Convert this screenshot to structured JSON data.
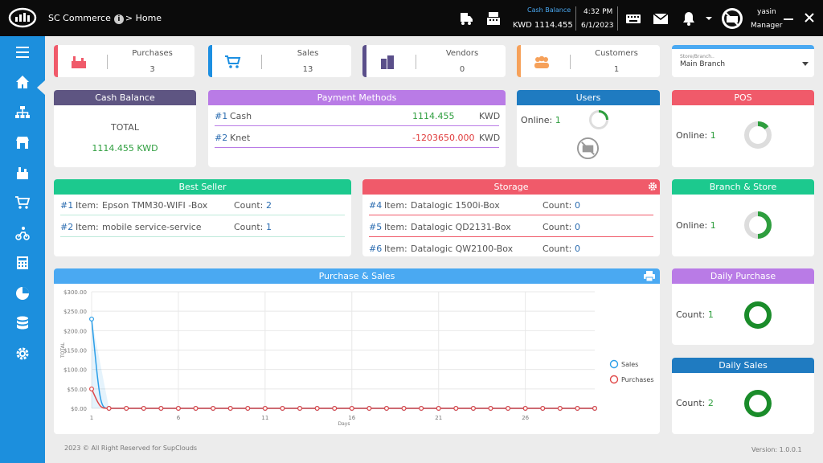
{
  "topbar": {
    "app_title": "SC Commerce",
    "info_label": "i",
    "breadcrumb": "> Home",
    "cash_balance_label": "Cash Balance",
    "cash_balance_value": "KWD  1114.455",
    "time": "4:32 PM",
    "date": "6/1/2023",
    "user_name": "yasin",
    "user_role": "Manager",
    "icons": [
      "truck-icon",
      "cash-register-icon",
      "keyboard-icon",
      "mail-icon",
      "bell-icon",
      "chevron-down-icon",
      "avatar-icon",
      "minimize-icon",
      "close-icon"
    ]
  },
  "sidebar": {
    "items": [
      "menu-icon",
      "home-icon",
      "org-chart-icon",
      "store-icon",
      "purchases-icon",
      "cart-icon",
      "delivery-icon",
      "calculator-icon",
      "pie-chart-icon",
      "database-icon",
      "gear-icon"
    ],
    "active": "home-icon"
  },
  "stats": [
    {
      "label": "Purchases",
      "value": "3",
      "color": "#f05a6a",
      "icon": "factory-icon"
    },
    {
      "label": "Sales",
      "value": "13",
      "color": "#1d8fe1",
      "icon": "cart-icon"
    },
    {
      "label": "Vendors",
      "value": "0",
      "color": "#5a4f8a",
      "icon": "buildings-icon"
    },
    {
      "label": "Customers",
      "value": "1",
      "color": "#f6a15a",
      "icon": "people-icon"
    }
  ],
  "branch_select": {
    "label": "Store/Branch..",
    "value": "Main Branch"
  },
  "cash_balance": {
    "title": "Cash Balance",
    "total_label": "TOTAL",
    "total_value": "1114.455 KWD",
    "color": "#5e5582"
  },
  "payment_methods": {
    "title": "Payment Methods",
    "color": "#b97be6",
    "rows": [
      {
        "idx": "#1",
        "name": "Cash",
        "amount": "1114.455",
        "currency": "KWD",
        "amount_color": "green"
      },
      {
        "idx": "#2",
        "name": "Knet",
        "amount": "-1203650.000",
        "currency": "KWD",
        "amount_color": "red"
      }
    ]
  },
  "users": {
    "title": "Users",
    "online_label": "Online:",
    "online_value": "1",
    "color": "#1f7bc1"
  },
  "pos": {
    "title": "POS",
    "online_label": "Online:",
    "online_value": "1",
    "color": "#f05a6a"
  },
  "best_seller": {
    "title": "Best Seller",
    "color": "#1cc98e",
    "rows": [
      {
        "idx": "#1",
        "item_label": "Item:",
        "item": "Epson TMM30-WIFI -Box",
        "count_label": "Count:",
        "count": "2"
      },
      {
        "idx": "#2",
        "item_label": "Item:",
        "item": "mobile service-service",
        "count_label": "Count:",
        "count": "1"
      }
    ]
  },
  "storage": {
    "title": "Storage",
    "color": "#f05a6a",
    "rows": [
      {
        "idx": "#4",
        "item_label": "Item:",
        "item": "Datalogic 1500i-Box",
        "count_label": "Count:",
        "count": "0"
      },
      {
        "idx": "#5",
        "item_label": "Item:",
        "item": "Datalogic QD2131-Box",
        "count_label": "Count:",
        "count": "0"
      },
      {
        "idx": "#6",
        "item_label": "Item:",
        "item": "Datalogic QW2100-Box",
        "count_label": "Count:",
        "count": "0"
      }
    ]
  },
  "branch_store": {
    "title": "Branch & Store",
    "online_label": "Online:",
    "online_value": "1",
    "color": "#1cc98e"
  },
  "daily_purchase": {
    "title": "Daily Purchase",
    "count_label": "Count:",
    "count": "1",
    "color": "#b97be6"
  },
  "daily_sales": {
    "title": "Daily Sales",
    "count_label": "Count:",
    "count": "2",
    "color": "#1f7bc1"
  },
  "chart_data": {
    "type": "line",
    "title": "Purchase & Sales",
    "ylabel": "TOTAL",
    "xlabel": "Days",
    "x": [
      1,
      2,
      3,
      4,
      5,
      6,
      7,
      8,
      9,
      10,
      11,
      12,
      13,
      14,
      15,
      16,
      17,
      18,
      19,
      20,
      21,
      22,
      23,
      24,
      25,
      26,
      27,
      28,
      29,
      30
    ],
    "xticks": [
      1,
      6,
      11,
      16,
      21,
      26
    ],
    "yticks": [
      "$0.00",
      "$50.00",
      "$100.00",
      "$150.00",
      "$200.00",
      "$250.00",
      "$300.00"
    ],
    "ylim": [
      0,
      300
    ],
    "grid": true,
    "legend_position": "right",
    "series": [
      {
        "name": "Sales",
        "color": "#2a9ee8",
        "values": [
          230,
          0,
          0,
          0,
          0,
          0,
          0,
          0,
          0,
          0,
          0,
          0,
          0,
          0,
          0,
          0,
          0,
          0,
          0,
          0,
          0,
          0,
          0,
          0,
          0,
          0,
          0,
          0,
          0,
          0
        ]
      },
      {
        "name": "Purchases",
        "color": "#e04848",
        "values": [
          50,
          0,
          0,
          0,
          0,
          0,
          0,
          0,
          0,
          0,
          0,
          0,
          0,
          0,
          0,
          0,
          0,
          0,
          0,
          0,
          0,
          0,
          0,
          0,
          0,
          0,
          0,
          0,
          0,
          0
        ]
      }
    ]
  },
  "footer": {
    "copyright": "2023 © All Right Reserved for SupClouds",
    "version": "Version:   1.0.0.1"
  }
}
